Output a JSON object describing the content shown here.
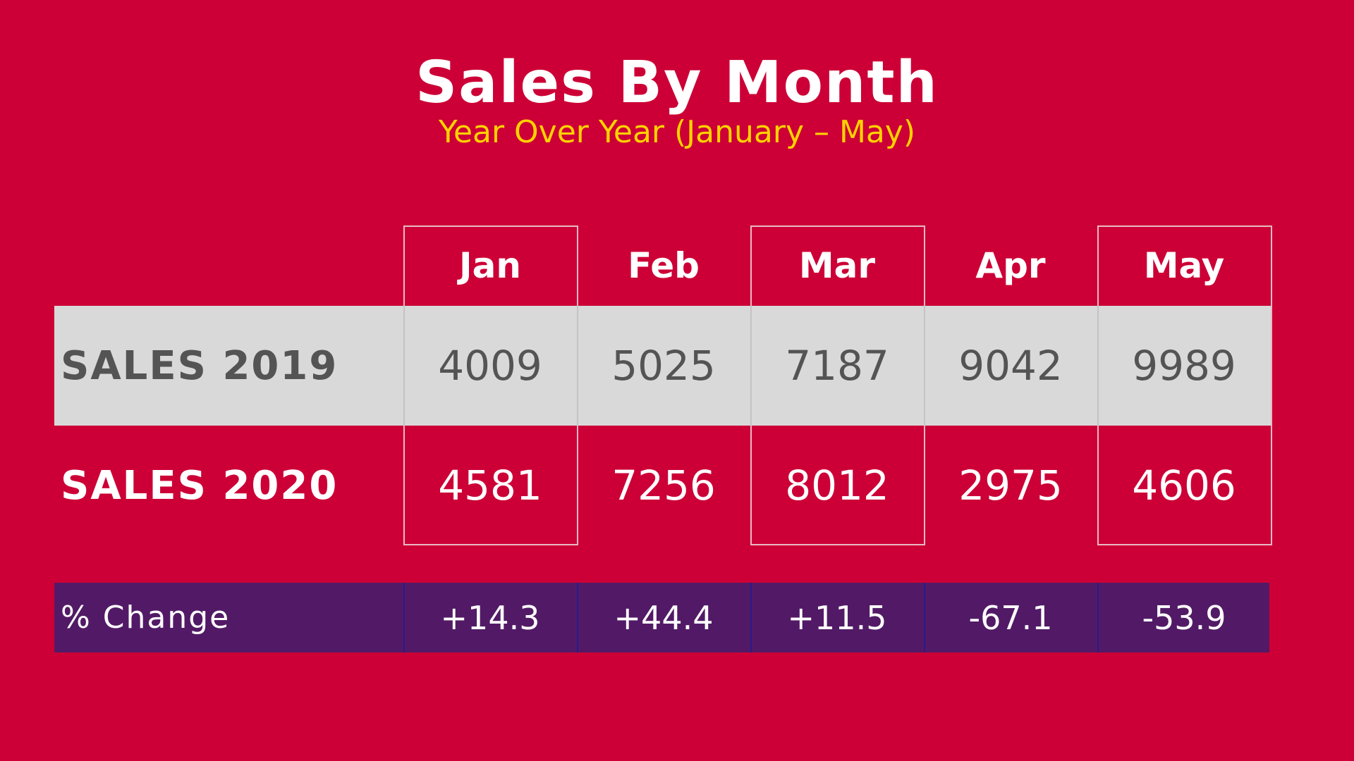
{
  "title": "Sales By Month",
  "subtitle": "Year Over Year (January – May)",
  "colors": {
    "background": "#cc0036",
    "title": "#ffffff",
    "subtitle": "#ffd200",
    "row_2019_band": "#d9d9d9",
    "change_band": "#521a66"
  },
  "chart_data": {
    "type": "table",
    "title": "Sales By Month",
    "subtitle": "Year Over Year (January – May)",
    "columns": [
      "Jan",
      "Feb",
      "Mar",
      "Apr",
      "May"
    ],
    "rows": [
      {
        "label": "SALES 2019",
        "values": [
          "4009",
          "5025",
          "7187",
          "9042",
          "9989"
        ]
      },
      {
        "label": "SALES 2020",
        "values": [
          "4581",
          "7256",
          "8012",
          "2975",
          "4606"
        ]
      },
      {
        "label": "% Change",
        "values": [
          "+14.3",
          "+44.4",
          "+11.5",
          "-67.1",
          "-53.9"
        ]
      }
    ]
  }
}
